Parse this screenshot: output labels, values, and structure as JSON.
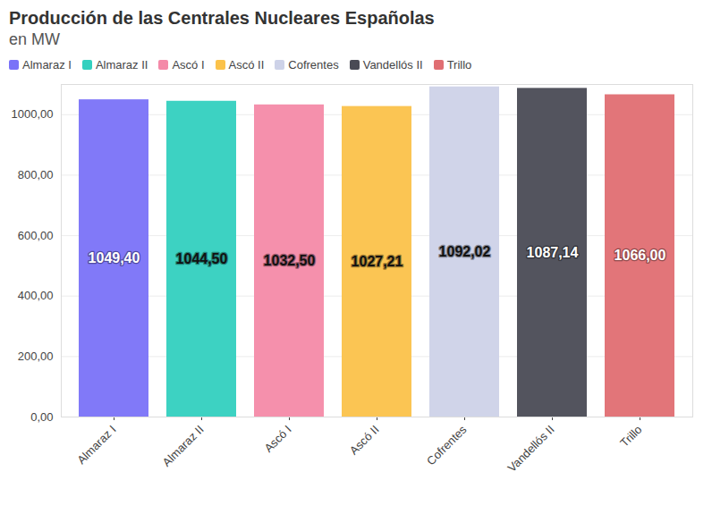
{
  "chart_data": {
    "type": "bar",
    "title": "Producción de las Centrales Nucleares Españolas",
    "subtitle": "en MW",
    "categories": [
      "Almaraz I",
      "Almaraz II",
      "Ascó I",
      "Ascó II",
      "Cofrentes",
      "Vandellós II",
      "Trillo"
    ],
    "values": [
      1049.4,
      1044.5,
      1032.5,
      1027.21,
      1092.02,
      1087.14,
      1066.0
    ],
    "value_labels": [
      "1049,40",
      "1044,50",
      "1032,50",
      "1027,21",
      "1092,02",
      "1087,14",
      "1066,00"
    ],
    "colors": [
      "#7a72f8",
      "#33d0bf",
      "#f48aa8",
      "#fbc24a",
      "#cdd2e8",
      "#4a4b55",
      "#e06e72"
    ],
    "ylim": [
      0,
      1100
    ],
    "yticks": [
      {
        "value": 0,
        "label": "0,00"
      },
      {
        "value": 200,
        "label": "200,00"
      },
      {
        "value": 400,
        "label": "400,00"
      },
      {
        "value": 600,
        "label": "600,00"
      },
      {
        "value": 800,
        "label": "800,00"
      },
      {
        "value": 1000,
        "label": "1000,00"
      }
    ],
    "grid": true,
    "data_labels": true,
    "legend": "top-left"
  }
}
